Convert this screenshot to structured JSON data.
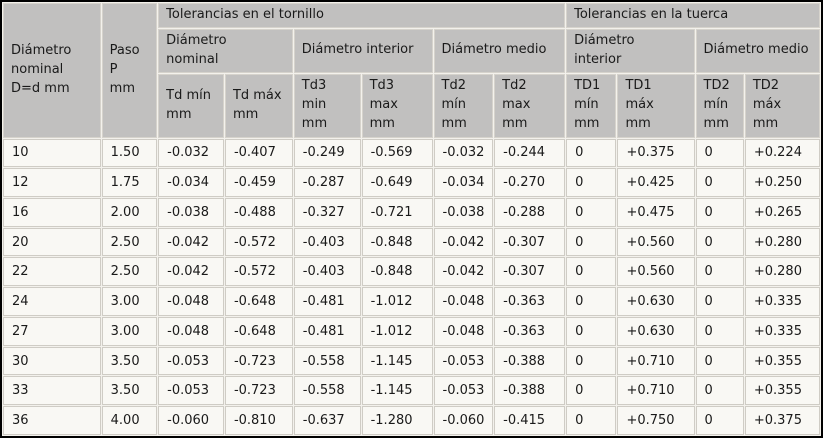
{
  "colors": {
    "header_bg": "#c1c0bf",
    "cell_bg": "#f9f8f4",
    "grid_gap": "#f3f1ec",
    "cell_border": "#cfccc5",
    "outer_border": "#000000",
    "text": "#1a1a1a"
  },
  "table": {
    "corner": {
      "diametro_nominal": "Diámetro\nnominal\nD=d mm",
      "paso": "Paso\nP\nmm"
    },
    "sections": [
      {
        "label": "Tolerancias en el tornillo"
      },
      {
        "label": "Tolerancias en la tuerca"
      }
    ],
    "groups": {
      "tornillo": [
        {
          "label": "Diámetro\nnominal",
          "sub": [
            "Td mín\nmm",
            "Td máx\nmm"
          ]
        },
        {
          "label": "Diámetro interior",
          "sub": [
            "Td3\nmin\nmm",
            "Td3\nmax\nmm"
          ]
        },
        {
          "label": "Diámetro medio",
          "sub": [
            "Td2\nmín\nmm",
            "Td2\nmax\nmm"
          ]
        }
      ],
      "tuerca": [
        {
          "label": "Diámetro\ninterior",
          "sub": [
            "TD1\nmín\nmm",
            "TD1\nmáx\nmm"
          ]
        },
        {
          "label": "Diámetro medio",
          "sub": [
            "TD2\nmín\nmm",
            "TD2\nmáx\nmm"
          ]
        }
      ]
    }
  },
  "chart_data": {
    "type": "table",
    "columns": [
      "Diámetro nominal D=d mm",
      "Paso P mm",
      "Td mín mm",
      "Td máx mm",
      "Td3 min mm",
      "Td3 max mm",
      "Td2 mín mm",
      "Td2 max mm",
      "TD1 mín mm",
      "TD1 máx mm",
      "TD2 mín mm",
      "TD2 máx mm"
    ],
    "rows": [
      [
        "10",
        "1.50",
        "-0.032",
        "-0.407",
        "-0.249",
        "-0.569",
        "-0.032",
        "-0.244",
        "0",
        "+0.375",
        "0",
        "+0.224"
      ],
      [
        "12",
        "1.75",
        "-0.034",
        "-0.459",
        "-0.287",
        "-0.649",
        "-0.034",
        "-0.270",
        "0",
        "+0.425",
        "0",
        "+0.250"
      ],
      [
        "16",
        "2.00",
        "-0.038",
        "-0.488",
        "-0.327",
        "-0.721",
        "-0.038",
        "-0.288",
        "0",
        "+0.475",
        "0",
        "+0.265"
      ],
      [
        "20",
        "2.50",
        "-0.042",
        "-0.572",
        "-0.403",
        "-0.848",
        "-0.042",
        "-0.307",
        "0",
        "+0.560",
        "0",
        "+0.280"
      ],
      [
        "22",
        "2.50",
        "-0.042",
        "-0.572",
        "-0.403",
        "-0.848",
        "-0.042",
        "-0.307",
        "0",
        "+0.560",
        "0",
        "+0.280"
      ],
      [
        "24",
        "3.00",
        "-0.048",
        "-0.648",
        "-0.481",
        "-1.012",
        "-0.048",
        "-0.363",
        "0",
        "+0.630",
        "0",
        "+0.335"
      ],
      [
        "27",
        "3.00",
        "-0.048",
        "-0.648",
        "-0.481",
        "-1.012",
        "-0.048",
        "-0.363",
        "0",
        "+0.630",
        "0",
        "+0.335"
      ],
      [
        "30",
        "3.50",
        "-0.053",
        "-0.723",
        "-0.558",
        "-1.145",
        "-0.053",
        "-0.388",
        "0",
        "+0.710",
        "0",
        "+0.355"
      ],
      [
        "33",
        "3.50",
        "-0.053",
        "-0.723",
        "-0.558",
        "-1.145",
        "-0.053",
        "-0.388",
        "0",
        "+0.710",
        "0",
        "+0.355"
      ],
      [
        "36",
        "4.00",
        "-0.060",
        "-0.810",
        "-0.637",
        "-1.280",
        "-0.060",
        "-0.415",
        "0",
        "+0.750",
        "0",
        "+0.375"
      ]
    ]
  }
}
